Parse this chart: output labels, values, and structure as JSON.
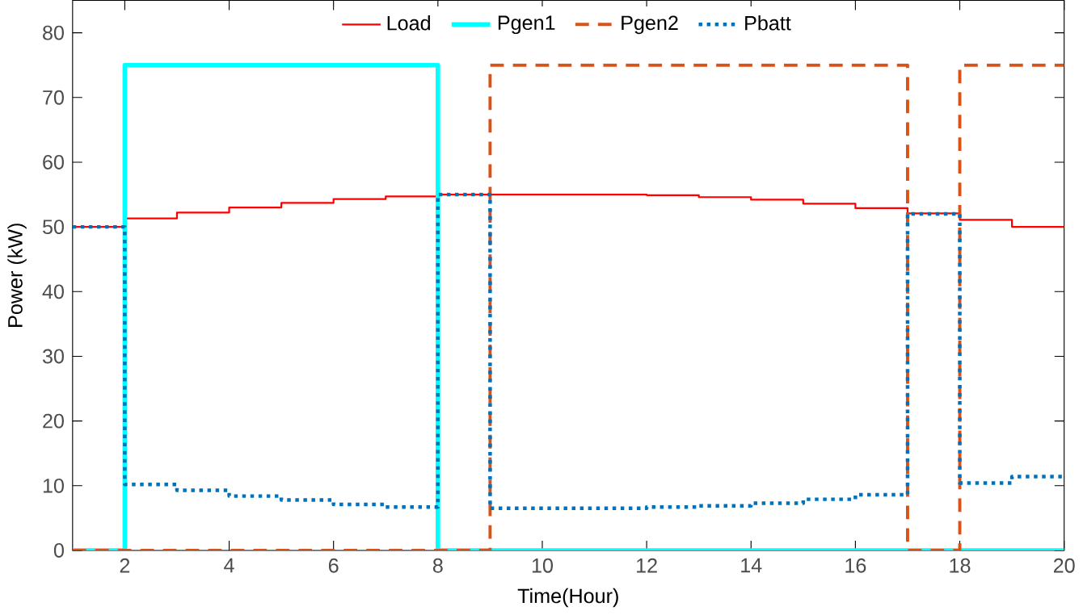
{
  "chart_data": {
    "type": "step",
    "xlabel": "Time(Hour)",
    "ylabel": "Power (kW)",
    "x": [
      1,
      2,
      3,
      4,
      5,
      6,
      7,
      8,
      9,
      10,
      11,
      12,
      13,
      14,
      15,
      16,
      17,
      18,
      19,
      20
    ],
    "xlim": [
      1,
      20
    ],
    "ylim": [
      0,
      85
    ],
    "xticks": [
      2,
      4,
      6,
      8,
      10,
      12,
      14,
      16,
      18,
      20
    ],
    "yticks": [
      0,
      10,
      20,
      30,
      40,
      50,
      60,
      70,
      80
    ],
    "legend": "top",
    "grid": false,
    "series": [
      {
        "name": "Load",
        "color": "#ff0000",
        "line_style": "solid",
        "values": [
          50,
          51.3,
          52.2,
          53,
          53.7,
          54.3,
          54.7,
          55,
          55,
          55,
          55,
          54.9,
          54.6,
          54.2,
          53.6,
          52.9,
          52.1,
          51.1,
          50,
          50
        ]
      },
      {
        "name": "Pgen1",
        "color": "#00ffff",
        "line_style": "solid",
        "values": [
          0,
          75,
          75,
          75,
          75,
          75,
          75,
          0,
          0,
          0,
          0,
          0,
          0,
          0,
          0,
          0,
          0,
          0,
          0,
          0
        ]
      },
      {
        "name": "Pgen2",
        "color": "#d95319",
        "line_style": "dashed",
        "values": [
          0,
          0,
          0,
          0,
          0,
          0,
          0,
          0,
          75,
          75,
          75,
          75,
          75,
          75,
          75,
          75,
          0,
          75,
          75,
          75
        ]
      },
      {
        "name": "Pbatt",
        "color": "#0072bd",
        "line_style": "dotted",
        "values": [
          50,
          10.2,
          9.3,
          8.4,
          7.8,
          7.1,
          6.7,
          55,
          6.5,
          6.5,
          6.5,
          6.7,
          6.9,
          7.3,
          7.9,
          8.6,
          52,
          10.4,
          11.4,
          11.4
        ]
      }
    ]
  }
}
